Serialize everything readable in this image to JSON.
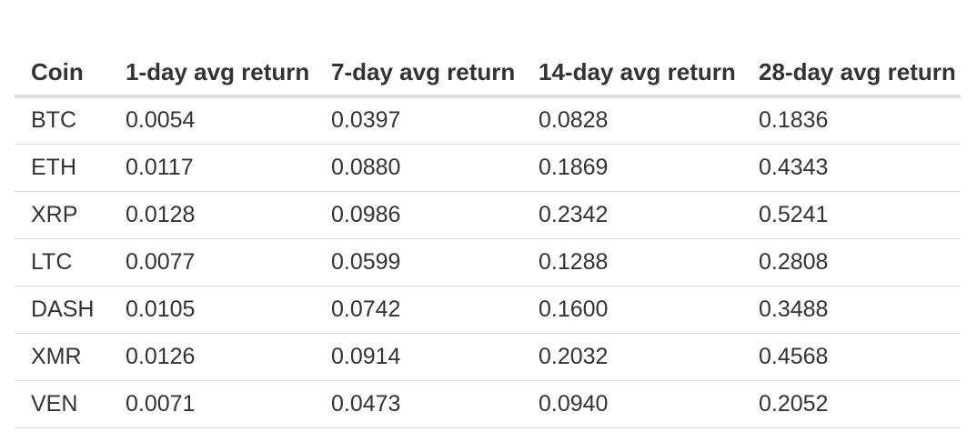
{
  "table": {
    "headers": [
      "Coin",
      "1-day avg return",
      "7-day avg return",
      "14-day avg return",
      "28-day avg return"
    ],
    "rows": [
      [
        "BTC",
        "0.0054",
        "0.0397",
        "0.0828",
        "0.1836"
      ],
      [
        "ETH",
        "0.0117",
        "0.0880",
        "0.1869",
        "0.4343"
      ],
      [
        "XRP",
        "0.0128",
        "0.0986",
        "0.2342",
        "0.5241"
      ],
      [
        "LTC",
        "0.0077",
        "0.0599",
        "0.1288",
        "0.2808"
      ],
      [
        "DASH",
        "0.0105",
        "0.0742",
        "0.1600",
        "0.3488"
      ],
      [
        "XMR",
        "0.0126",
        "0.0914",
        "0.2032",
        "0.4568"
      ],
      [
        "VEN",
        "0.0071",
        "0.0473",
        "0.0940",
        "0.2052"
      ]
    ]
  }
}
